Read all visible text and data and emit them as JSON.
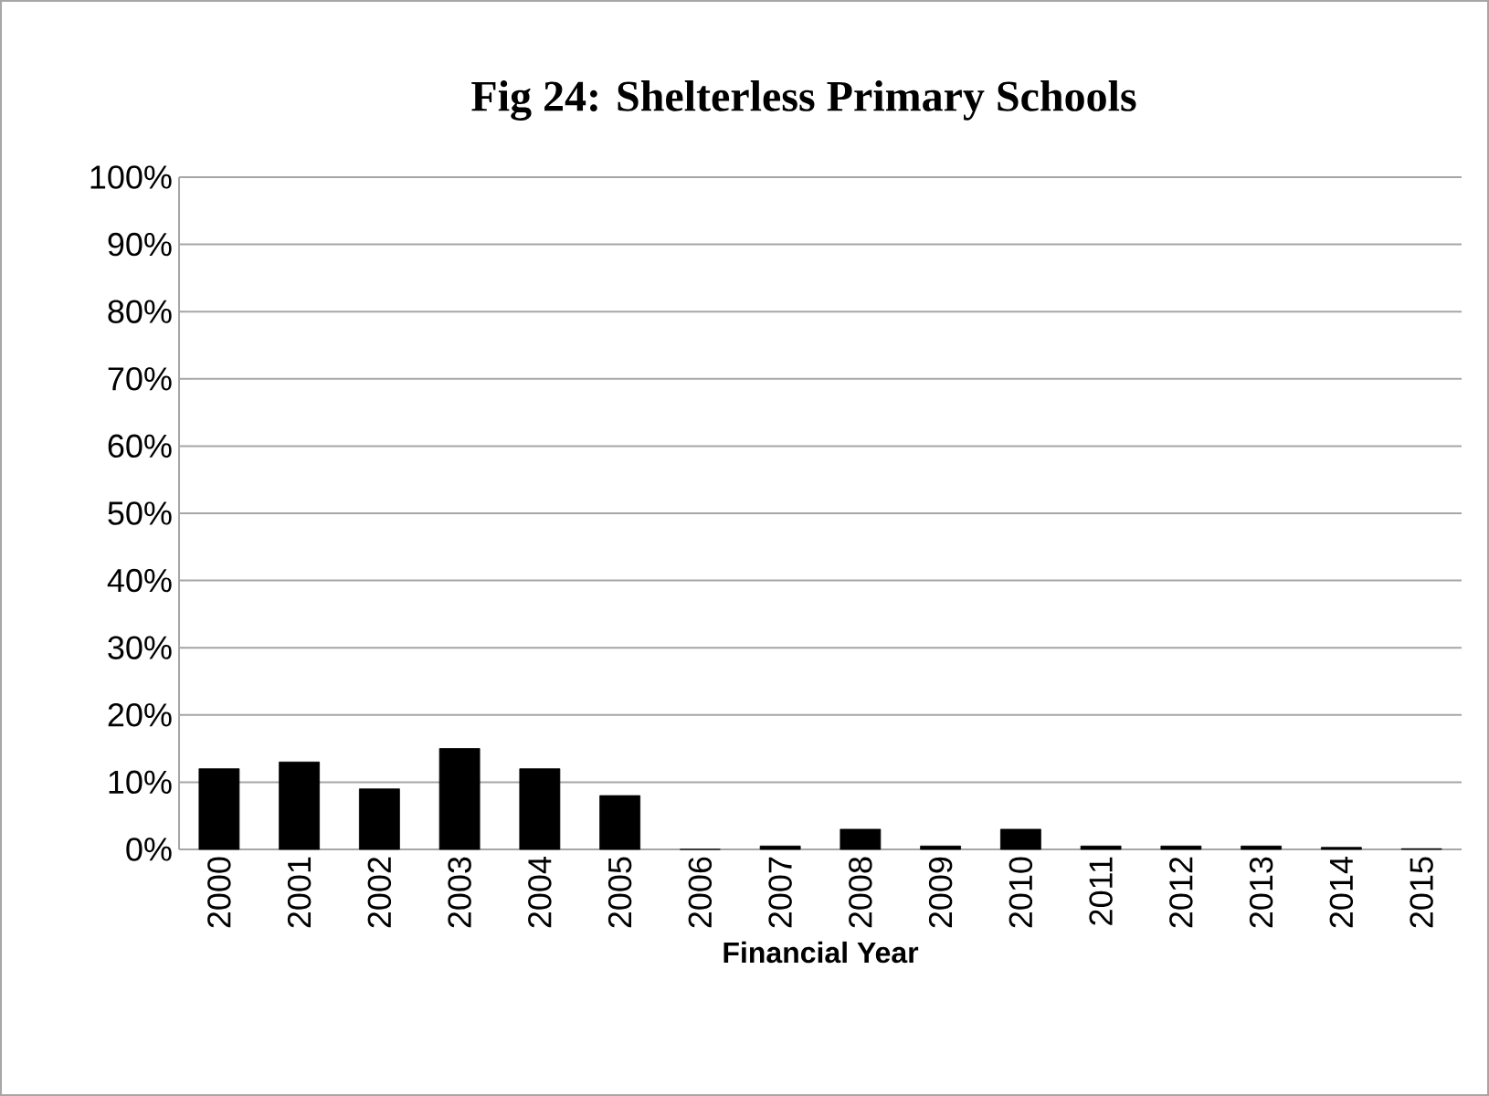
{
  "chart_data": {
    "type": "bar",
    "title": "Fig 24: Shelterless Primary Schools",
    "xlabel": "Financial Year",
    "categories": [
      "2000",
      "2001",
      "2002",
      "2003",
      "2004",
      "2005",
      "2006",
      "2007",
      "2008",
      "2009",
      "2010",
      "2011",
      "2012",
      "2013",
      "2014",
      "2015"
    ],
    "values": [
      12,
      13,
      9,
      15,
      12,
      8,
      0,
      0.5,
      3,
      0.5,
      3,
      0.5,
      0.5,
      0.5,
      0.3,
      0.1
    ],
    "color": "#000000",
    "ylim": [
      0,
      100
    ],
    "yticks": [
      {
        "value": 0,
        "label": "0%"
      },
      {
        "value": 10,
        "label": "10%"
      },
      {
        "value": 20,
        "label": "20%"
      },
      {
        "value": 30,
        "label": "30%"
      },
      {
        "value": 40,
        "label": "40%"
      },
      {
        "value": 50,
        "label": "50%"
      },
      {
        "value": 60,
        "label": "60%"
      },
      {
        "value": 70,
        "label": "70%"
      },
      {
        "value": 80,
        "label": "80%"
      },
      {
        "value": 90,
        "label": "90%"
      },
      {
        "value": 100,
        "label": "100%"
      }
    ],
    "grid": "y"
  }
}
